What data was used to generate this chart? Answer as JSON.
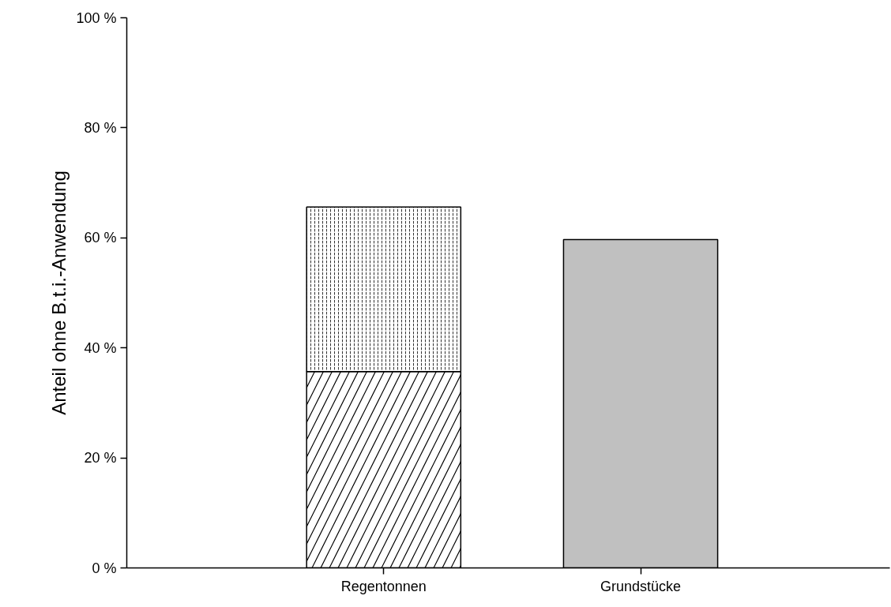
{
  "chart_data": {
    "type": "bar",
    "ylabel": "Anteil ohne B.t.i.-Anwendung",
    "categories": [
      "Regentonnen",
      "Grundstücke"
    ],
    "stacked": true,
    "series": [
      {
        "color": "#ffffff",
        "values": [
          35.7,
          null
        ]
      },
      {
        "color": "#ffffff",
        "values": [
          29.9,
          null
        ]
      },
      {
        "color": "#c0c0c0",
        "values": [
          null,
          59.7
        ]
      }
    ],
    "ylim": [
      0,
      100
    ],
    "yticks": [
      {
        "value": 0,
        "label": "0 %"
      },
      {
        "value": 20,
        "label": "20 %"
      },
      {
        "value": 40,
        "label": "40 %"
      },
      {
        "value": 60,
        "label": "60 %"
      },
      {
        "value": 80,
        "label": "80 %"
      },
      {
        "value": 100,
        "label": "100 %"
      }
    ],
    "grid": false
  }
}
